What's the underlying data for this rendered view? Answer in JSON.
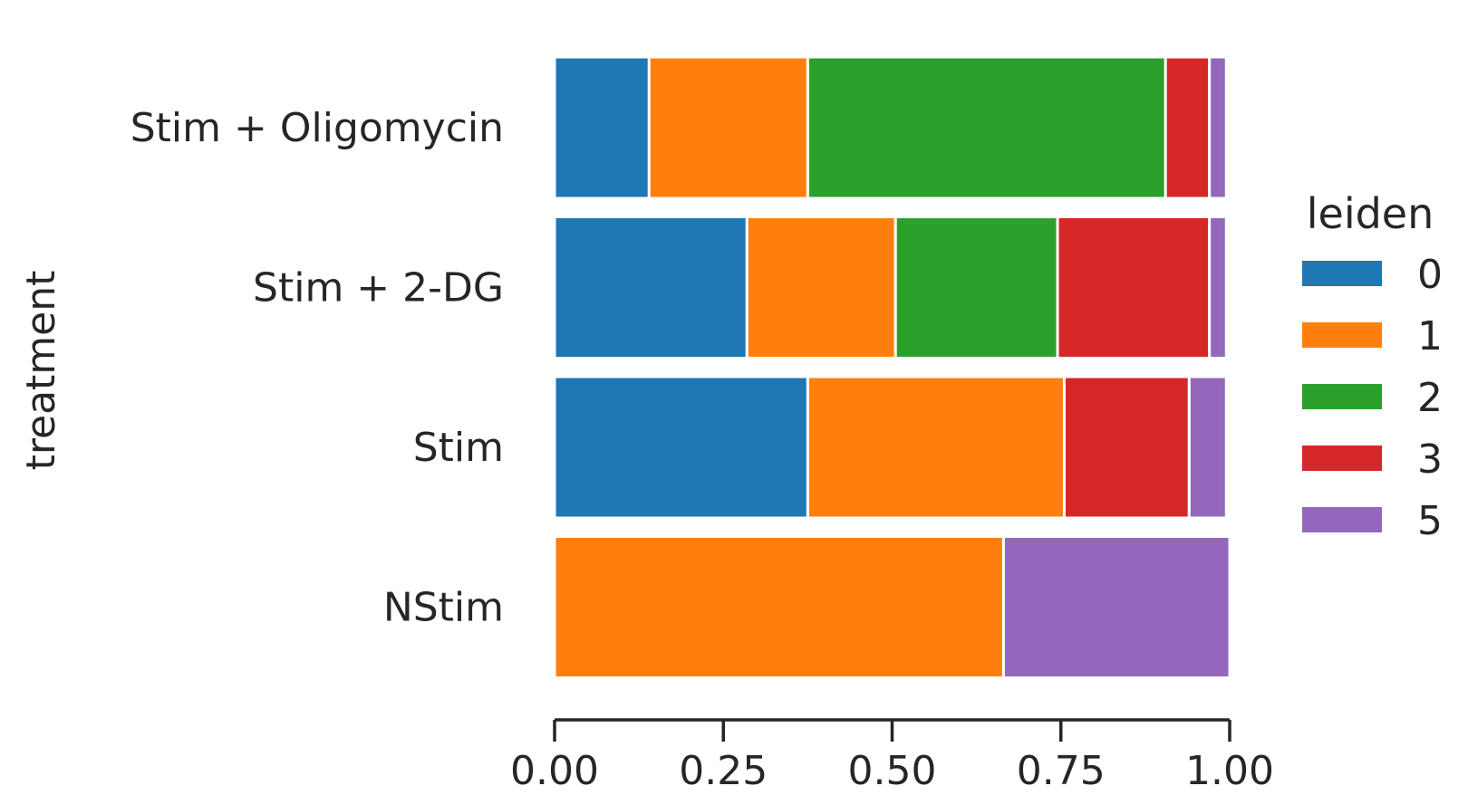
{
  "chart_data": {
    "type": "bar",
    "orientation": "horizontal",
    "stacked": true,
    "categories": [
      "Stim + Oligomycin",
      "Stim + 2-DG",
      "Stim",
      "NStim"
    ],
    "series": [
      {
        "name": "0",
        "color": "#1f77b4",
        "values": [
          0.14,
          0.285,
          0.375,
          0.0
        ]
      },
      {
        "name": "1",
        "color": "#ff7f0e",
        "values": [
          0.235,
          0.22,
          0.38,
          0.665
        ]
      },
      {
        "name": "2",
        "color": "#2ca02c",
        "values": [
          0.53,
          0.24,
          0.0,
          0.0
        ]
      },
      {
        "name": "3",
        "color": "#d62728",
        "values": [
          0.065,
          0.225,
          0.185,
          0.0
        ]
      },
      {
        "name": "5",
        "color": "#9467bd",
        "values": [
          0.025,
          0.025,
          0.055,
          0.335
        ]
      }
    ],
    "xlim": [
      0,
      1
    ],
    "xticks": [
      "0.00",
      "0.25",
      "0.50",
      "0.75",
      "1.00"
    ],
    "ylabel": "treatment",
    "xlabel": "",
    "legend": {
      "title": "leiden",
      "placement": "right"
    },
    "grid": false
  }
}
